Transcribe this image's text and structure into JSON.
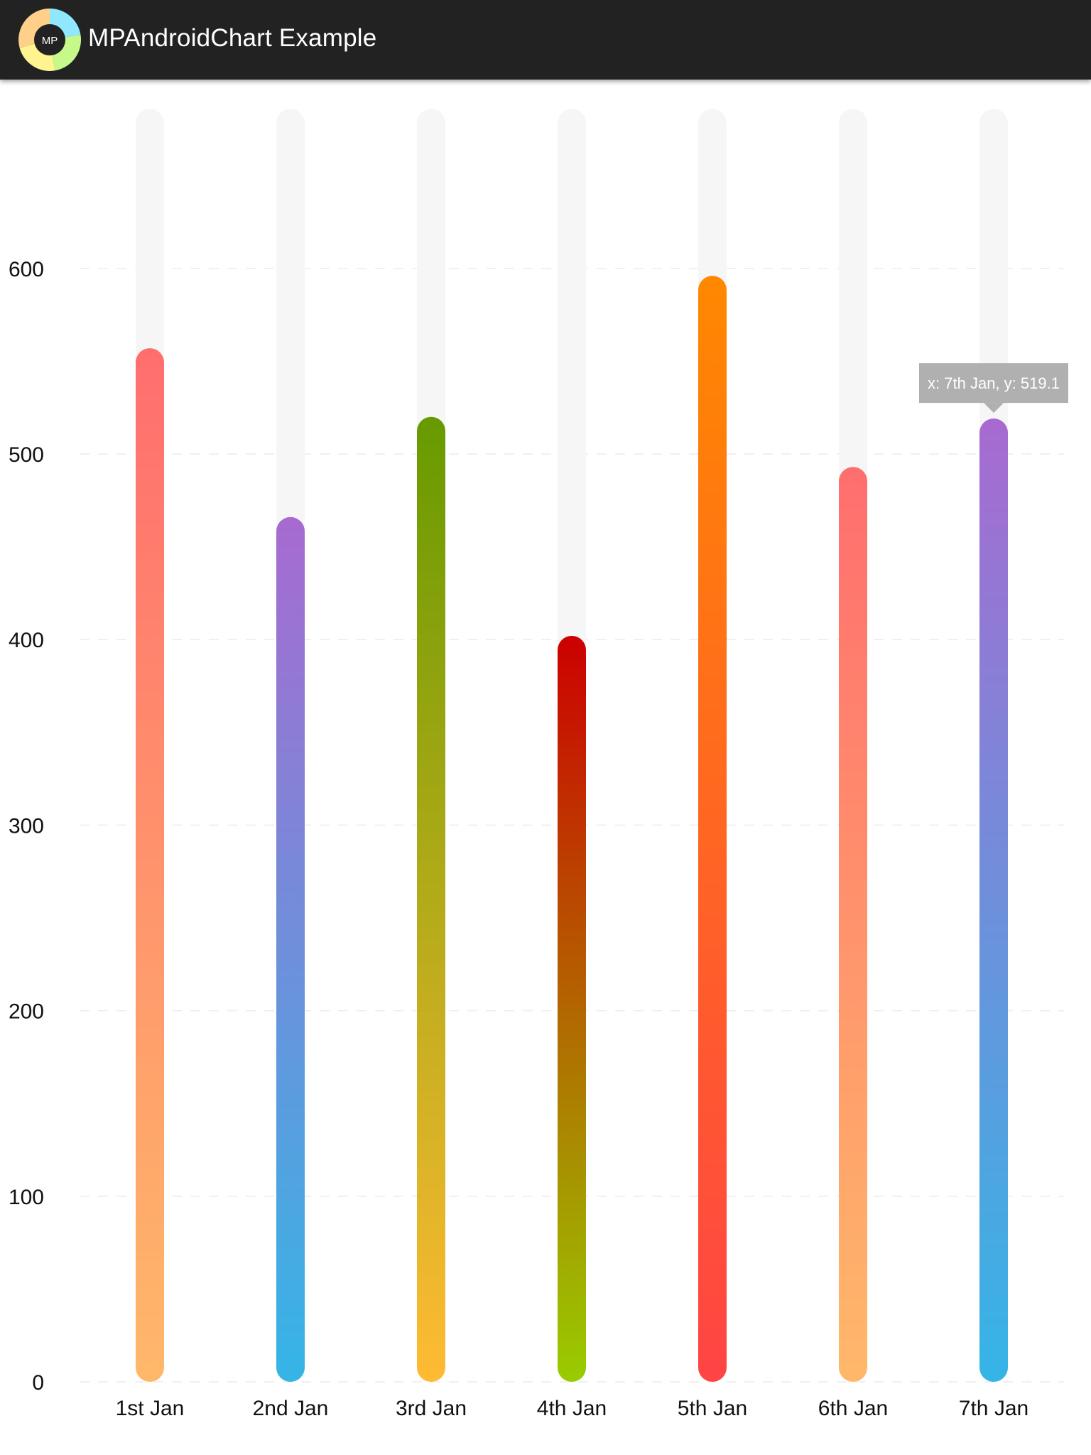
{
  "app": {
    "title": "MPAndroidChart Example",
    "icon_label": "MP"
  },
  "colors": {
    "appbar": "#222222",
    "track": "#f6f6f6",
    "tooltip_bg": "#b0b0b0",
    "tooltip_text": "#ffffff",
    "axis_text": "#111111"
  },
  "chart_data": {
    "type": "bar",
    "title": "",
    "xlabel": "",
    "ylabel": "",
    "categories": [
      "1st Jan",
      "2nd Jan",
      "3rd Jan",
      "4th Jan",
      "5th Jan",
      "6th Jan",
      "7th Jan"
    ],
    "values": [
      557,
      466,
      520,
      402,
      596,
      493,
      519.1
    ],
    "track_max": 686,
    "ylim": [
      0,
      686
    ],
    "yticks": [
      0,
      100,
      200,
      300,
      400,
      500,
      600
    ],
    "grid": true,
    "gradients": [
      {
        "top": "#ff6e6e",
        "bottom": "#ffb86a"
      },
      {
        "top": "#a86ad0",
        "bottom": "#35b5e6"
      },
      {
        "top": "#679a00",
        "bottom": "#ffbb33"
      },
      {
        "top": "#cc0000",
        "bottom": "#99cc00"
      },
      {
        "top": "#ff8800",
        "bottom": "#ff4444"
      },
      {
        "top": "#ff6e6e",
        "bottom": "#ffb86a"
      },
      {
        "top": "#a86ad0",
        "bottom": "#35b5e6"
      }
    ],
    "highlight": {
      "index": 6,
      "text": "x: 7th Jan, y: 519.1"
    }
  }
}
